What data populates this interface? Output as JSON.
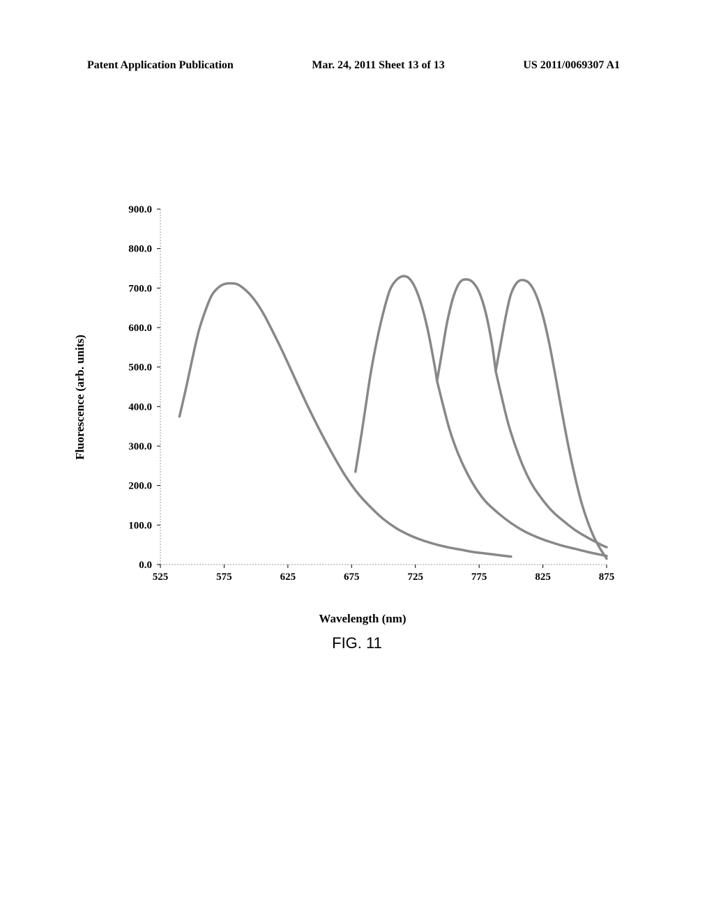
{
  "header": {
    "left": "Patent Application Publication",
    "center": "Mar. 24, 2011  Sheet 13 of 13",
    "right": "US 2011/0069307 A1"
  },
  "chart": {
    "type": "line",
    "ylabel": "Fluorescence (arb. units)",
    "xlabel": "Wavelength (nm)",
    "xlim": [
      525,
      875
    ],
    "ylim": [
      0,
      900
    ],
    "ytick_step": 100,
    "xtick_step": 50,
    "tick_fontsize": 15,
    "label_fontsize": 17,
    "label_fontweight": "bold",
    "background_color": "#ffffff",
    "line_color": "#888888",
    "line_width": 3.5,
    "axis_color": "#000000",
    "yticks": [
      "0.0",
      "100.0",
      "200.0",
      "300.0",
      "400.0",
      "500.0",
      "600.0",
      "700.0",
      "800.0",
      "900.0"
    ],
    "xticks": [
      "525",
      "575",
      "625",
      "675",
      "725",
      "775",
      "825",
      "875"
    ],
    "series": [
      {
        "points": [
          [
            540,
            375
          ],
          [
            545,
            445
          ],
          [
            550,
            520
          ],
          [
            555,
            590
          ],
          [
            560,
            640
          ],
          [
            565,
            680
          ],
          [
            570,
            700
          ],
          [
            575,
            710
          ],
          [
            580,
            712
          ],
          [
            585,
            710
          ],
          [
            590,
            700
          ],
          [
            595,
            685
          ],
          [
            600,
            665
          ],
          [
            605,
            640
          ],
          [
            610,
            610
          ],
          [
            620,
            545
          ],
          [
            630,
            475
          ],
          [
            640,
            405
          ],
          [
            650,
            340
          ],
          [
            660,
            280
          ],
          [
            670,
            225
          ],
          [
            680,
            180
          ],
          [
            690,
            145
          ],
          [
            700,
            115
          ],
          [
            710,
            92
          ],
          [
            720,
            75
          ],
          [
            730,
            62
          ],
          [
            740,
            52
          ],
          [
            750,
            44
          ],
          [
            760,
            38
          ],
          [
            770,
            32
          ],
          [
            780,
            28
          ],
          [
            790,
            24
          ],
          [
            800,
            20
          ]
        ]
      },
      {
        "points": [
          [
            678,
            235
          ],
          [
            682,
            315
          ],
          [
            686,
            400
          ],
          [
            690,
            485
          ],
          [
            695,
            570
          ],
          [
            700,
            640
          ],
          [
            705,
            695
          ],
          [
            710,
            720
          ],
          [
            715,
            730
          ],
          [
            720,
            725
          ],
          [
            725,
            700
          ],
          [
            730,
            655
          ],
          [
            735,
            590
          ],
          [
            740,
            505
          ],
          [
            742,
            465
          ]
        ]
      },
      {
        "points": [
          [
            742,
            465
          ],
          [
            746,
            540
          ],
          [
            750,
            615
          ],
          [
            755,
            680
          ],
          [
            760,
            715
          ],
          [
            765,
            722
          ],
          [
            770,
            715
          ],
          [
            775,
            690
          ],
          [
            780,
            640
          ],
          [
            785,
            560
          ],
          [
            788,
            490
          ]
        ]
      },
      {
        "points": [
          [
            788,
            490
          ],
          [
            792,
            560
          ],
          [
            796,
            630
          ],
          [
            800,
            685
          ],
          [
            805,
            715
          ],
          [
            810,
            720
          ],
          [
            815,
            710
          ],
          [
            820,
            680
          ],
          [
            825,
            630
          ],
          [
            830,
            560
          ],
          [
            835,
            475
          ],
          [
            840,
            385
          ],
          [
            845,
            300
          ],
          [
            850,
            225
          ],
          [
            855,
            160
          ],
          [
            860,
            110
          ],
          [
            865,
            70
          ],
          [
            870,
            40
          ],
          [
            875,
            15
          ]
        ]
      },
      {
        "points": [
          [
            742,
            465
          ],
          [
            747,
            400
          ],
          [
            752,
            340
          ],
          [
            758,
            285
          ],
          [
            765,
            235
          ],
          [
            772,
            195
          ],
          [
            780,
            160
          ],
          [
            790,
            130
          ],
          [
            800,
            105
          ],
          [
            810,
            85
          ],
          [
            820,
            70
          ],
          [
            830,
            58
          ],
          [
            840,
            48
          ],
          [
            850,
            40
          ],
          [
            860,
            32
          ],
          [
            870,
            25
          ],
          [
            875,
            22
          ]
        ]
      },
      {
        "points": [
          [
            788,
            490
          ],
          [
            793,
            420
          ],
          [
            798,
            355
          ],
          [
            804,
            295
          ],
          [
            810,
            245
          ],
          [
            817,
            200
          ],
          [
            825,
            163
          ],
          [
            833,
            133
          ],
          [
            842,
            108
          ],
          [
            850,
            88
          ],
          [
            858,
            72
          ],
          [
            866,
            58
          ],
          [
            872,
            48
          ],
          [
            875,
            44
          ]
        ]
      }
    ]
  },
  "caption": "FIG. 11"
}
